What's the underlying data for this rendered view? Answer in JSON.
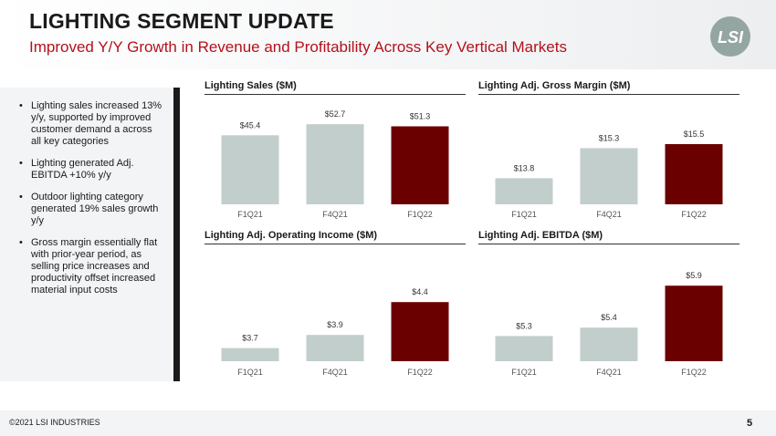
{
  "header": {
    "title": "LIGHTING SEGMENT UPDATE",
    "subtitle": "Improved Y/Y Growth in Revenue and Profitability Across Key Vertical Markets",
    "logo_text": "LSI"
  },
  "sidebar": {
    "bullets": [
      "Lighting sales increased 13% y/y, supported by improved customer demand a across all key categories",
      "Lighting generated Adj. EBITDA +10% y/y",
      "Outdoor lighting category generated 19% sales growth y/y",
      "Gross margin essentially flat with prior-year period, as selling price increases and productivity offset increased material input costs"
    ]
  },
  "colors": {
    "bar_light": "#c2cecc",
    "bar_dark": "#6b0000",
    "subtitle": "#b3121b",
    "logo": "#94a6a2"
  },
  "chart_data": [
    {
      "type": "bar",
      "title": "Lighting Sales ($M)",
      "categories": [
        "F1Q21",
        "F4Q21",
        "F1Q22"
      ],
      "values": [
        45.4,
        52.7,
        51.3
      ],
      "labels": [
        "$45.4",
        "$52.7",
        "$51.3"
      ],
      "ylim": [
        0,
        60
      ],
      "grid": false
    },
    {
      "type": "bar",
      "title": "Lighting Adj. Gross Margin ($M)",
      "categories": [
        "F1Q21",
        "F4Q21",
        "F1Q22"
      ],
      "values": [
        13.8,
        15.3,
        15.5
      ],
      "labels": [
        "$13.8",
        "$15.3",
        "$15.5"
      ],
      "ylim": [
        12.5,
        16.5
      ],
      "grid": false
    },
    {
      "type": "bar",
      "title": "Lighting Adj. Operating Income ($M)",
      "categories": [
        "F1Q21",
        "F4Q21",
        "F1Q22"
      ],
      "values": [
        3.7,
        3.9,
        4.4
      ],
      "labels": [
        "$3.7",
        "$3.9",
        "$4.4"
      ],
      "ylim": [
        3.5,
        4.5
      ],
      "grid": false
    },
    {
      "type": "bar",
      "title": "Lighting Adj. EBITDA ($M)",
      "categories": [
        "F1Q21",
        "F4Q21",
        "F1Q22"
      ],
      "values": [
        5.3,
        5.4,
        5.9
      ],
      "labels": [
        "$5.3",
        "$5.4",
        "$5.9"
      ],
      "ylim": [
        5.0,
        6.0
      ],
      "grid": false
    }
  ],
  "footer": {
    "copyright": "©2021 LSI INDUSTRIES",
    "page_number": "5"
  }
}
